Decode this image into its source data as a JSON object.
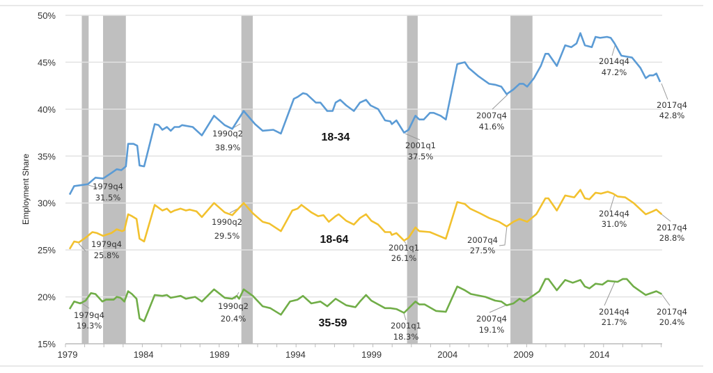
{
  "chart_data": {
    "type": "line",
    "title": "",
    "xlabel": "",
    "ylabel": "Employment Share",
    "xlim": [
      1979,
      2018
    ],
    "ylim": [
      15,
      50
    ],
    "x_ticks": [
      "1979",
      "1984",
      "1989",
      "1994",
      "1999",
      "2004",
      "2009",
      "2014"
    ],
    "y_ticks": [
      "15%",
      "20%",
      "25%",
      "30%",
      "35%",
      "40%",
      "45%",
      "50%"
    ],
    "grid": "horizontal",
    "recession_shading_color": "#bfbfbf",
    "recessions": [
      [
        1979.8,
        1980.25
      ],
      [
        1981.2,
        1982.7
      ],
      [
        1990.3,
        1991.05
      ],
      [
        2001.2,
        2001.9
      ],
      [
        2008.0,
        2009.45
      ]
    ],
    "series": [
      {
        "name": "18-34",
        "color": "#5b9bd5",
        "points": [
          [
            1979.0,
            30.9
          ],
          [
            1979.3,
            31.8
          ],
          [
            1980.2,
            32.0
          ],
          [
            1980.7,
            32.7
          ],
          [
            1981.2,
            32.6
          ],
          [
            1981.75,
            33.2
          ],
          [
            1982.1,
            33.6
          ],
          [
            1982.4,
            33.5
          ],
          [
            1982.7,
            33.9
          ],
          [
            1982.85,
            36.3
          ],
          [
            1983.2,
            36.3
          ],
          [
            1983.45,
            36.1
          ],
          [
            1983.6,
            34.0
          ],
          [
            1983.9,
            33.9
          ],
          [
            1984.6,
            38.4
          ],
          [
            1984.85,
            38.3
          ],
          [
            1985.1,
            37.8
          ],
          [
            1985.4,
            38.1
          ],
          [
            1985.65,
            37.7
          ],
          [
            1985.9,
            38.1
          ],
          [
            1986.2,
            38.1
          ],
          [
            1986.4,
            38.3
          ],
          [
            1987.1,
            38.1
          ],
          [
            1987.7,
            37.2
          ],
          [
            1988.5,
            39.3
          ],
          [
            1989.2,
            38.3
          ],
          [
            1989.7,
            37.9
          ],
          [
            1990.45,
            39.8
          ],
          [
            1991.2,
            38.4
          ],
          [
            1991.7,
            37.7
          ],
          [
            1992.4,
            37.8
          ],
          [
            1992.9,
            37.4
          ],
          [
            1993.75,
            41.1
          ],
          [
            1994.0,
            41.3
          ],
          [
            1994.35,
            41.7
          ],
          [
            1994.6,
            41.6
          ],
          [
            1995.2,
            40.7
          ],
          [
            1995.5,
            40.7
          ],
          [
            1995.95,
            39.8
          ],
          [
            1996.3,
            39.8
          ],
          [
            1996.5,
            40.7
          ],
          [
            1996.8,
            41.0
          ],
          [
            1997.2,
            40.4
          ],
          [
            1997.7,
            39.8
          ],
          [
            1998.1,
            40.7
          ],
          [
            1998.5,
            41.0
          ],
          [
            1998.8,
            40.4
          ],
          [
            1999.3,
            40.0
          ],
          [
            1999.75,
            38.8
          ],
          [
            2000.1,
            38.7
          ],
          [
            2000.2,
            38.4
          ],
          [
            2000.5,
            38.8
          ],
          [
            2001.0,
            37.5
          ],
          [
            2001.3,
            37.8
          ],
          [
            2001.75,
            39.3
          ],
          [
            2002.0,
            38.9
          ],
          [
            2002.3,
            38.9
          ],
          [
            2002.7,
            39.6
          ],
          [
            2002.95,
            39.6
          ],
          [
            2003.4,
            39.3
          ],
          [
            2003.75,
            38.9
          ],
          [
            2004.5,
            44.8
          ],
          [
            2005.0,
            45.0
          ],
          [
            2005.25,
            44.4
          ],
          [
            2005.9,
            43.5
          ],
          [
            2006.6,
            42.7
          ],
          [
            2007.0,
            42.6
          ],
          [
            2007.4,
            42.4
          ],
          [
            2007.75,
            41.6
          ],
          [
            2008.2,
            42.1
          ],
          [
            2008.6,
            42.7
          ],
          [
            2008.85,
            42.7
          ],
          [
            2009.1,
            42.4
          ],
          [
            2009.55,
            43.3
          ],
          [
            2010.0,
            44.6
          ],
          [
            2010.3,
            45.9
          ],
          [
            2010.5,
            45.9
          ],
          [
            2011.05,
            44.6
          ],
          [
            2011.6,
            46.8
          ],
          [
            2012.0,
            46.6
          ],
          [
            2012.35,
            47.0
          ],
          [
            2012.6,
            48.1
          ],
          [
            2012.9,
            46.8
          ],
          [
            2013.35,
            46.6
          ],
          [
            2013.6,
            47.7
          ],
          [
            2013.9,
            47.6
          ],
          [
            2014.35,
            47.7
          ],
          [
            2014.6,
            47.6
          ],
          [
            2014.85,
            47.0
          ],
          [
            2015.3,
            45.7
          ],
          [
            2016.0,
            45.5
          ],
          [
            2016.55,
            44.4
          ],
          [
            2016.9,
            43.3
          ],
          [
            2017.15,
            43.6
          ],
          [
            2017.4,
            43.6
          ],
          [
            2017.6,
            43.8
          ],
          [
            2017.85,
            42.9
          ]
        ]
      },
      {
        "name": "18-64",
        "color": "#f2c12e",
        "points": [
          [
            1979.0,
            25.1
          ],
          [
            1979.3,
            25.9
          ],
          [
            1979.6,
            25.8
          ],
          [
            1980.05,
            26.3
          ],
          [
            1980.5,
            26.9
          ],
          [
            1980.8,
            26.8
          ],
          [
            1981.2,
            26.5
          ],
          [
            1981.75,
            26.8
          ],
          [
            1982.1,
            27.2
          ],
          [
            1982.45,
            27.0
          ],
          [
            1982.6,
            27.1
          ],
          [
            1982.85,
            28.8
          ],
          [
            1983.1,
            28.6
          ],
          [
            1983.4,
            28.3
          ],
          [
            1983.6,
            26.2
          ],
          [
            1983.9,
            25.9
          ],
          [
            1984.6,
            29.8
          ],
          [
            1985.1,
            29.2
          ],
          [
            1985.4,
            29.4
          ],
          [
            1985.65,
            29.0
          ],
          [
            1985.9,
            29.2
          ],
          [
            1986.3,
            29.4
          ],
          [
            1986.65,
            29.2
          ],
          [
            1986.9,
            29.3
          ],
          [
            1987.35,
            29.1
          ],
          [
            1987.7,
            28.5
          ],
          [
            1988.5,
            30.0
          ],
          [
            1989.2,
            29.0
          ],
          [
            1989.7,
            28.7
          ],
          [
            1990.45,
            30.0
          ],
          [
            1991.05,
            28.9
          ],
          [
            1991.7,
            28.0
          ],
          [
            1992.15,
            27.8
          ],
          [
            1992.9,
            27.0
          ],
          [
            1993.65,
            29.2
          ],
          [
            1994.0,
            29.4
          ],
          [
            1994.25,
            29.8
          ],
          [
            1994.9,
            29.0
          ],
          [
            1995.35,
            28.6
          ],
          [
            1995.7,
            28.7
          ],
          [
            1996.05,
            28.0
          ],
          [
            1996.5,
            28.6
          ],
          [
            1996.7,
            28.8
          ],
          [
            1997.2,
            28.1
          ],
          [
            1997.7,
            27.7
          ],
          [
            1998.1,
            28.4
          ],
          [
            1998.5,
            28.8
          ],
          [
            1998.85,
            28.1
          ],
          [
            1999.3,
            27.7
          ],
          [
            1999.75,
            26.9
          ],
          [
            2000.1,
            26.9
          ],
          [
            2000.2,
            26.6
          ],
          [
            2000.5,
            26.8
          ],
          [
            2001.0,
            26.0
          ],
          [
            2001.3,
            26.3
          ],
          [
            2001.75,
            27.4
          ],
          [
            2002.0,
            27.0
          ],
          [
            2002.7,
            26.9
          ],
          [
            2003.3,
            26.5
          ],
          [
            2003.75,
            26.2
          ],
          [
            2004.5,
            30.1
          ],
          [
            2005.0,
            29.9
          ],
          [
            2005.35,
            29.4
          ],
          [
            2006.0,
            28.9
          ],
          [
            2006.6,
            28.4
          ],
          [
            2007.25,
            28.0
          ],
          [
            2007.75,
            27.5
          ],
          [
            2008.2,
            28.0
          ],
          [
            2008.6,
            28.3
          ],
          [
            2009.1,
            28.0
          ],
          [
            2009.7,
            28.8
          ],
          [
            2010.3,
            30.5
          ],
          [
            2010.5,
            30.5
          ],
          [
            2011.05,
            29.2
          ],
          [
            2011.6,
            30.8
          ],
          [
            2012.2,
            30.6
          ],
          [
            2012.6,
            31.4
          ],
          [
            2012.9,
            30.5
          ],
          [
            2013.2,
            30.4
          ],
          [
            2013.6,
            31.1
          ],
          [
            2013.95,
            31.0
          ],
          [
            2014.4,
            31.2
          ],
          [
            2014.75,
            31.0
          ],
          [
            2015.05,
            30.7
          ],
          [
            2015.55,
            30.6
          ],
          [
            2016.1,
            30.0
          ],
          [
            2016.9,
            28.8
          ],
          [
            2017.35,
            29.1
          ],
          [
            2017.6,
            29.3
          ],
          [
            2017.95,
            28.8
          ]
        ]
      },
      {
        "name": "35-59",
        "color": "#70ad47",
        "points": [
          [
            1979.0,
            18.7
          ],
          [
            1979.3,
            19.5
          ],
          [
            1979.7,
            19.3
          ],
          [
            1980.05,
            19.6
          ],
          [
            1980.4,
            20.4
          ],
          [
            1980.7,
            20.3
          ],
          [
            1981.15,
            19.5
          ],
          [
            1981.4,
            19.7
          ],
          [
            1981.9,
            19.7
          ],
          [
            1982.1,
            20.0
          ],
          [
            1982.35,
            19.9
          ],
          [
            1982.6,
            19.5
          ],
          [
            1982.85,
            20.6
          ],
          [
            1983.1,
            20.3
          ],
          [
            1983.4,
            19.8
          ],
          [
            1983.6,
            17.7
          ],
          [
            1983.9,
            17.4
          ],
          [
            1984.6,
            20.2
          ],
          [
            1985.1,
            20.1
          ],
          [
            1985.4,
            20.2
          ],
          [
            1985.65,
            19.9
          ],
          [
            1986.3,
            20.1
          ],
          [
            1986.65,
            19.8
          ],
          [
            1987.25,
            20.0
          ],
          [
            1987.7,
            19.5
          ],
          [
            1988.5,
            20.8
          ],
          [
            1989.2,
            19.9
          ],
          [
            1989.7,
            19.8
          ],
          [
            1990.0,
            20.1
          ],
          [
            1990.15,
            19.8
          ],
          [
            1990.45,
            20.8
          ],
          [
            1991.05,
            20.1
          ],
          [
            1991.7,
            19.0
          ],
          [
            1992.2,
            18.8
          ],
          [
            1992.9,
            18.1
          ],
          [
            1993.5,
            19.5
          ],
          [
            1994.0,
            19.7
          ],
          [
            1994.35,
            20.1
          ],
          [
            1994.9,
            19.3
          ],
          [
            1995.5,
            19.5
          ],
          [
            1995.95,
            19.0
          ],
          [
            1996.5,
            19.8
          ],
          [
            1997.2,
            19.1
          ],
          [
            1997.8,
            18.9
          ],
          [
            1998.1,
            19.5
          ],
          [
            1998.5,
            20.2
          ],
          [
            1998.85,
            19.6
          ],
          [
            1999.3,
            19.2
          ],
          [
            1999.75,
            18.8
          ],
          [
            2000.1,
            18.8
          ],
          [
            2000.5,
            18.7
          ],
          [
            2001.0,
            18.3
          ],
          [
            2001.75,
            19.5
          ],
          [
            2002.0,
            19.2
          ],
          [
            2002.35,
            19.2
          ],
          [
            2003.1,
            18.5
          ],
          [
            2003.75,
            18.4
          ],
          [
            2004.5,
            21.1
          ],
          [
            2005.0,
            20.7
          ],
          [
            2005.4,
            20.3
          ],
          [
            2006.35,
            20.0
          ],
          [
            2007.0,
            19.6
          ],
          [
            2007.4,
            19.5
          ],
          [
            2007.75,
            19.1
          ],
          [
            2008.2,
            19.3
          ],
          [
            2008.6,
            19.8
          ],
          [
            2008.9,
            19.5
          ],
          [
            2009.55,
            20.2
          ],
          [
            2009.9,
            20.6
          ],
          [
            2010.3,
            21.9
          ],
          [
            2010.5,
            21.9
          ],
          [
            2011.05,
            20.7
          ],
          [
            2011.6,
            21.8
          ],
          [
            2012.1,
            21.5
          ],
          [
            2012.6,
            21.8
          ],
          [
            2012.9,
            21.1
          ],
          [
            2013.2,
            20.9
          ],
          [
            2013.6,
            21.4
          ],
          [
            2014.05,
            21.3
          ],
          [
            2014.4,
            21.7
          ],
          [
            2015.05,
            21.6
          ],
          [
            2015.4,
            21.9
          ],
          [
            2015.65,
            21.9
          ],
          [
            2016.1,
            21.1
          ],
          [
            2016.45,
            20.7
          ],
          [
            2016.9,
            20.2
          ],
          [
            2017.6,
            20.6
          ],
          [
            2017.95,
            20.3
          ]
        ]
      }
    ],
    "annotations": [
      {
        "series": "18-34",
        "label": "1979q4",
        "value": "31.5%"
      },
      {
        "series": "18-34",
        "label": "1990q2",
        "value": "38.9%"
      },
      {
        "series": "18-34",
        "label": "2001q1",
        "value": "37.5%"
      },
      {
        "series": "18-34",
        "label": "2007q4",
        "value": "41.6%"
      },
      {
        "series": "18-34",
        "label": "2014q4",
        "value": "47.2%"
      },
      {
        "series": "18-34",
        "label": "2017q4",
        "value": "42.8%"
      },
      {
        "series": "18-64",
        "label": "1979q4",
        "value": "25.8%"
      },
      {
        "series": "18-64",
        "label": "1990q2",
        "value": "29.5%"
      },
      {
        "series": "18-64",
        "label": "2001q1",
        "value": "26.1%"
      },
      {
        "series": "18-64",
        "label": "2007q4",
        "value": "27.5%"
      },
      {
        "series": "18-64",
        "label": "2014q4",
        "value": "31.0%"
      },
      {
        "series": "18-64",
        "label": "2017q4",
        "value": "28.8%"
      },
      {
        "series": "35-59",
        "label": "1979q4",
        "value": "19.3%"
      },
      {
        "series": "35-59",
        "label": "1990q2",
        "value": "20.4%"
      },
      {
        "series": "35-59",
        "label": "2001q1",
        "value": "18.3%"
      },
      {
        "series": "35-59",
        "label": "2007q4",
        "value": "19.1%"
      },
      {
        "series": "35-59",
        "label": "2014q4",
        "value": "21.7%"
      },
      {
        "series": "35-59",
        "label": "2017q4",
        "value": "20.4%"
      }
    ]
  }
}
